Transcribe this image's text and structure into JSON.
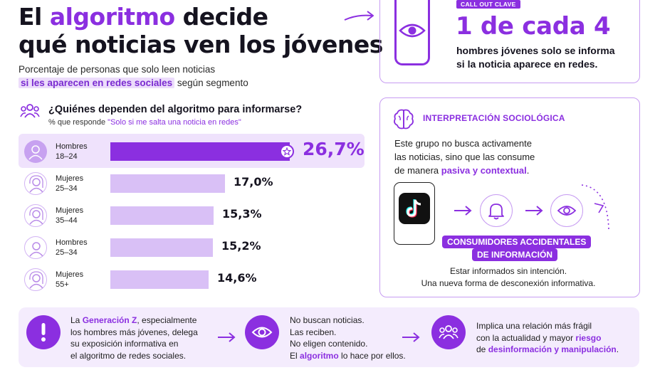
{
  "header": {
    "title_part1": "El ",
    "title_highlight": "algoritmo",
    "title_part2": " decide",
    "title_line2": "qué noticias ven los jóvenes",
    "subtitle_line1": "Porcentaje de personas que solo leen noticias",
    "subtitle_highlight": "si les aparecen en redes sociales",
    "subtitle_rest": " según segmento"
  },
  "callout": {
    "tag": "CALL OUT CLAVE",
    "big": "1 de cada 4",
    "line1": "hombres jóvenes solo se informa",
    "line2": "si la noticia aparece en redes."
  },
  "question": {
    "title": "¿Quiénes dependen del algoritmo para informarse?",
    "sub_prefix": "% que responde ",
    "sub_quote": "\"Solo si me salta una noticia en redes\""
  },
  "chart_data": {
    "type": "bar",
    "categories": [
      "Hombres 18–24",
      "Mujeres 25–34",
      "Mujeres 35–44",
      "Hombres 25–34",
      "Mujeres 55+"
    ],
    "values": [
      26.7,
      17.0,
      15.3,
      15.2,
      14.6
    ],
    "unit": "%",
    "rows": [
      {
        "line1": "Hombres",
        "line2": "18–24",
        "value": 26.7,
        "label": "26,7%",
        "highlight": true
      },
      {
        "line1": "Mujeres",
        "line2": "25–34",
        "value": 17.0,
        "label": "17,0%",
        "highlight": false
      },
      {
        "line1": "Mujeres",
        "line2": "35–44",
        "value": 15.3,
        "label": "15,3%",
        "highlight": false
      },
      {
        "line1": "Hombres",
        "line2": "25–34",
        "value": 15.2,
        "label": "15,2%",
        "highlight": false
      },
      {
        "line1": "Mujeres",
        "line2": "55+",
        "value": 14.6,
        "label": "14,6%",
        "highlight": false
      }
    ]
  },
  "interpretation": {
    "title": "INTERPRETACIÓN SOCIOLÓGICA",
    "line1": "Este grupo no busca activamente",
    "line2": "las noticias, sino que las consume",
    "line3_prefix": "de manera ",
    "line3_highlight": "pasiva y contextual",
    "line3_suffix": ".",
    "pill1": "CONSUMIDORES ACCIDENTALES",
    "pill2": "DE INFORMACIÓN",
    "foot1": "Estar informados sin intención.",
    "foot2": "Una nueva forma de desconexión informativa."
  },
  "bottom": {
    "b1_l1_prefix": "La ",
    "b1_l1_highlight": "Generación Z",
    "b1_l1_suffix": ", especialmente",
    "b1_l2": "los hombres más jóvenes, delega",
    "b1_l3": "su exposición informativa en",
    "b1_l4": "el algoritmo de redes sociales.",
    "b2_l1": "No buscan noticias.",
    "b2_l2": "Las reciben.",
    "b2_l3": "No eligen contenido.",
    "b2_l4_prefix": "El ",
    "b2_l4_highlight": "algoritmo",
    "b2_l4_suffix": " lo hace por ellos.",
    "b3_l1": "Implica una relación más frágil",
    "b3_l2_prefix": "con la actualidad y mayor ",
    "b3_l2_highlight": "riesgo",
    "b3_l3_prefix": "de ",
    "b3_l3_highlight": "desinformación y manipulación",
    "b3_l3_suffix": "."
  },
  "colors": {
    "accent": "#8b2fe0",
    "soft": "#d9c0f6",
    "panel": "#f4ecfd"
  }
}
